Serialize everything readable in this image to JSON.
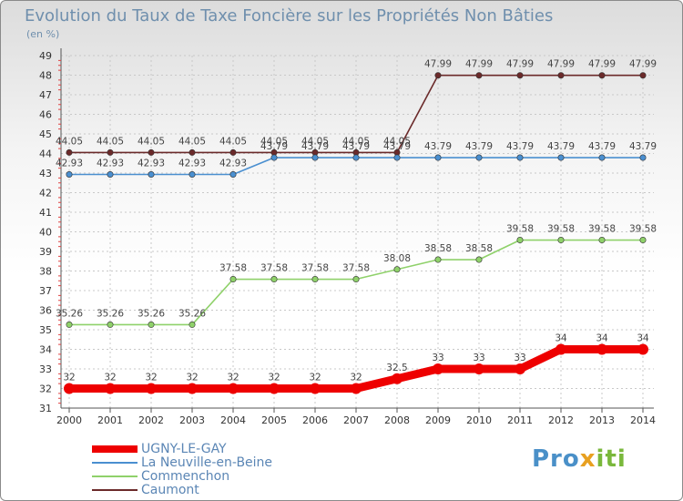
{
  "title": "Evolution du Taux de Taxe Foncière sur les Propriétés Non Bâties",
  "subtitle": "(en %)",
  "logo": {
    "part1": "Pro",
    "part2": "x",
    "part3": "iti"
  },
  "chart_data": {
    "type": "line",
    "title": "Evolution du Taux de Taxe Foncière sur les Propriétés Non Bâties",
    "ylabel": "(en %)",
    "xlabel": "",
    "ylim": [
      31,
      49
    ],
    "yticks": [
      31,
      32,
      33,
      34,
      35,
      36,
      37,
      38,
      39,
      40,
      41,
      42,
      43,
      44,
      45,
      46,
      47,
      48,
      49
    ],
    "x": [
      "2000",
      "2001",
      "2002",
      "2003",
      "2004",
      "2005",
      "2006",
      "2007",
      "2008",
      "2009",
      "2010",
      "2011",
      "2012",
      "2013",
      "2014"
    ],
    "grid": true,
    "legend_position": "bottom-left",
    "series": [
      {
        "name": "Caumont",
        "color": "#6b2a2a",
        "values": [
          44.05,
          44.05,
          44.05,
          44.05,
          44.05,
          44.05,
          44.05,
          44.05,
          44.05,
          47.99,
          47.99,
          47.99,
          47.99,
          47.99,
          47.99
        ],
        "labels": [
          "44.05",
          "44.05",
          "44.05",
          "44.05",
          "44.05",
          "44.05",
          "44.05",
          "44.05",
          "44.05",
          "47.99",
          "47.99",
          "47.99",
          "47.99",
          "47.99",
          "47.99"
        ]
      },
      {
        "name": "La Neuville-en-Beine",
        "color": "#4a8fd0",
        "values": [
          42.93,
          42.93,
          42.93,
          42.93,
          42.93,
          43.79,
          43.79,
          43.79,
          43.79,
          43.79,
          43.79,
          43.79,
          43.79,
          43.79,
          43.79
        ],
        "labels": [
          "42.93",
          "42.93",
          "42.93",
          "42.93",
          "42.93",
          "43.79",
          "43.79",
          "43.79",
          "43.79",
          "43.79",
          "43.79",
          "43.79",
          "43.79",
          "43.79",
          "43.79"
        ]
      },
      {
        "name": "Commenchon",
        "color": "#8fd16a",
        "values": [
          35.26,
          35.26,
          35.26,
          35.26,
          37.58,
          37.58,
          37.58,
          37.58,
          38.08,
          38.58,
          38.58,
          39.58,
          39.58,
          39.58,
          39.58
        ],
        "labels": [
          "35.26",
          "35.26",
          "35.26",
          "35.26",
          "37.58",
          "37.58",
          "37.58",
          "37.58",
          "38.08",
          "38.58",
          "38.58",
          "39.58",
          "39.58",
          "39.58",
          "39.58"
        ]
      },
      {
        "name": "UGNY-LE-GAY",
        "color": "#ee0000",
        "values": [
          32,
          32,
          32,
          32,
          32,
          32,
          32,
          32,
          32.5,
          33,
          33,
          33,
          34,
          34,
          34
        ],
        "labels": [
          "32",
          "32",
          "32",
          "32",
          "32",
          "32",
          "32",
          "32",
          "32.5",
          "33",
          "33",
          "33",
          "34",
          "34",
          "34"
        ]
      }
    ],
    "legend_order": [
      "UGNY-LE-GAY",
      "La Neuville-en-Beine",
      "Commenchon",
      "Caumont"
    ]
  }
}
